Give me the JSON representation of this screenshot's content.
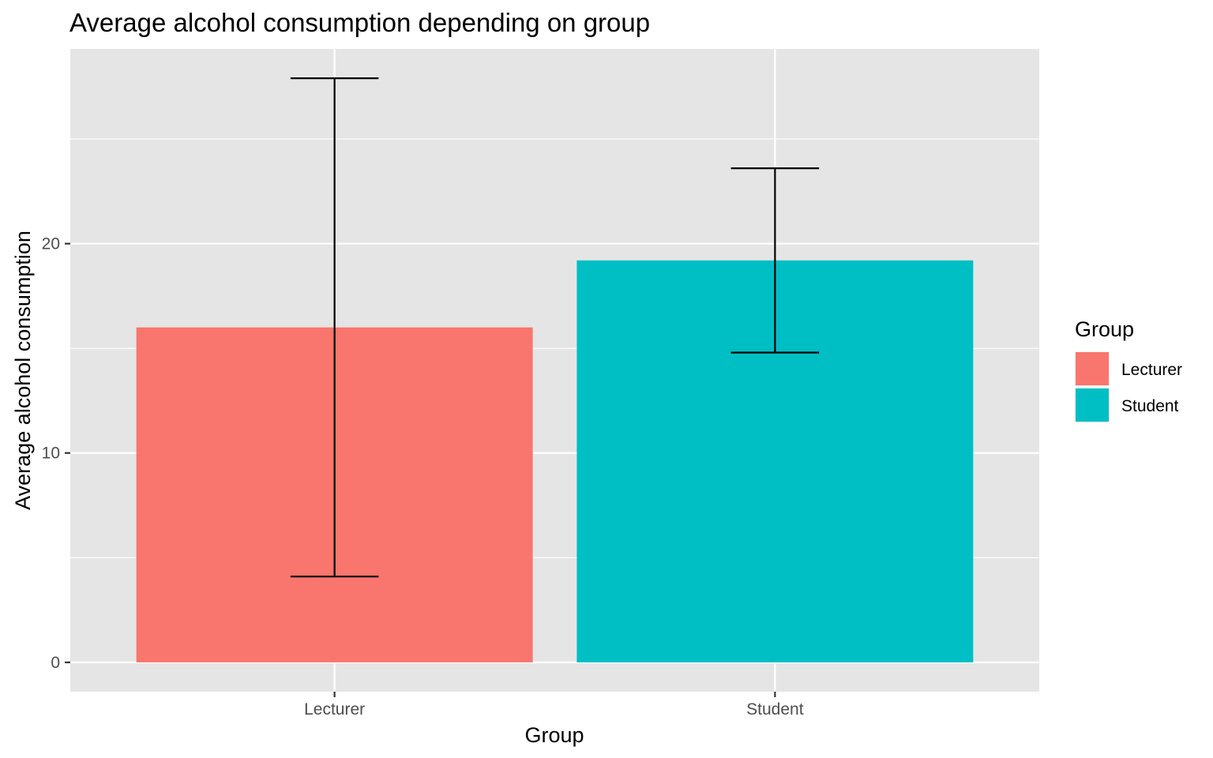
{
  "chart_data": {
    "type": "bar",
    "title": "Average alcohol consumption depending on group",
    "xlabel": "Group",
    "ylabel": "Average alcohol consumption",
    "categories": [
      "Lecturer",
      "Student"
    ],
    "values": [
      16.0,
      19.2
    ],
    "error_bars": {
      "lower": [
        4.1,
        14.8
      ],
      "upper": [
        27.9,
        23.6
      ]
    },
    "y_ticks": [
      0,
      10,
      20
    ],
    "ylim": [
      -1.4,
      29.3
    ],
    "grid": true,
    "legend": {
      "title": "Group",
      "placement": "right",
      "entries": [
        "Lecturer",
        "Student"
      ]
    },
    "colors": {
      "Lecturer": "#F8766D",
      "Student": "#00BFC4",
      "panel_background": "#E5E5E5",
      "gridline": "#FFFFFF",
      "error_bar": "#000000"
    }
  }
}
